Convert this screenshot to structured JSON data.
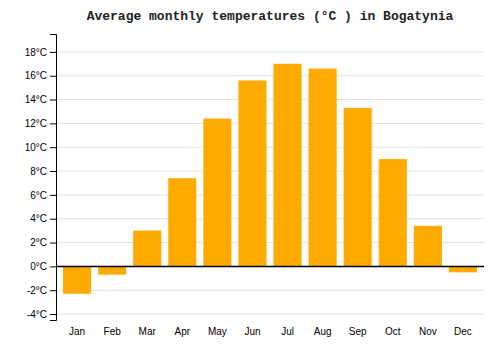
{
  "chart_data": {
    "type": "bar",
    "title": "Average monthly temperatures (°C ) in Bogatynia",
    "categories": [
      "Jan",
      "Feb",
      "Mar",
      "Apr",
      "May",
      "Jun",
      "Jul",
      "Aug",
      "Sep",
      "Oct",
      "Nov",
      "Dec"
    ],
    "values": [
      -2.3,
      -0.7,
      3.0,
      7.4,
      12.4,
      15.6,
      17.0,
      16.6,
      13.3,
      9.0,
      3.4,
      -0.5
    ],
    "color": "#FFAA00",
    "ylim": [
      -4.5,
      19.5
    ],
    "yticks": [
      {
        "value": -4,
        "label": "-4°C"
      },
      {
        "value": -2,
        "label": "-2°C"
      },
      {
        "value": 0,
        "label": "0°C"
      },
      {
        "value": 2,
        "label": "2°C"
      },
      {
        "value": 4,
        "label": "4°C"
      },
      {
        "value": 6,
        "label": "6°C"
      },
      {
        "value": 8,
        "label": "8°C"
      },
      {
        "value": 10,
        "label": "10°C"
      },
      {
        "value": 12,
        "label": "12°C"
      },
      {
        "value": 14,
        "label": "14°C"
      },
      {
        "value": 16,
        "label": "16°C"
      },
      {
        "value": 18,
        "label": "18°C"
      }
    ],
    "grid": true
  }
}
